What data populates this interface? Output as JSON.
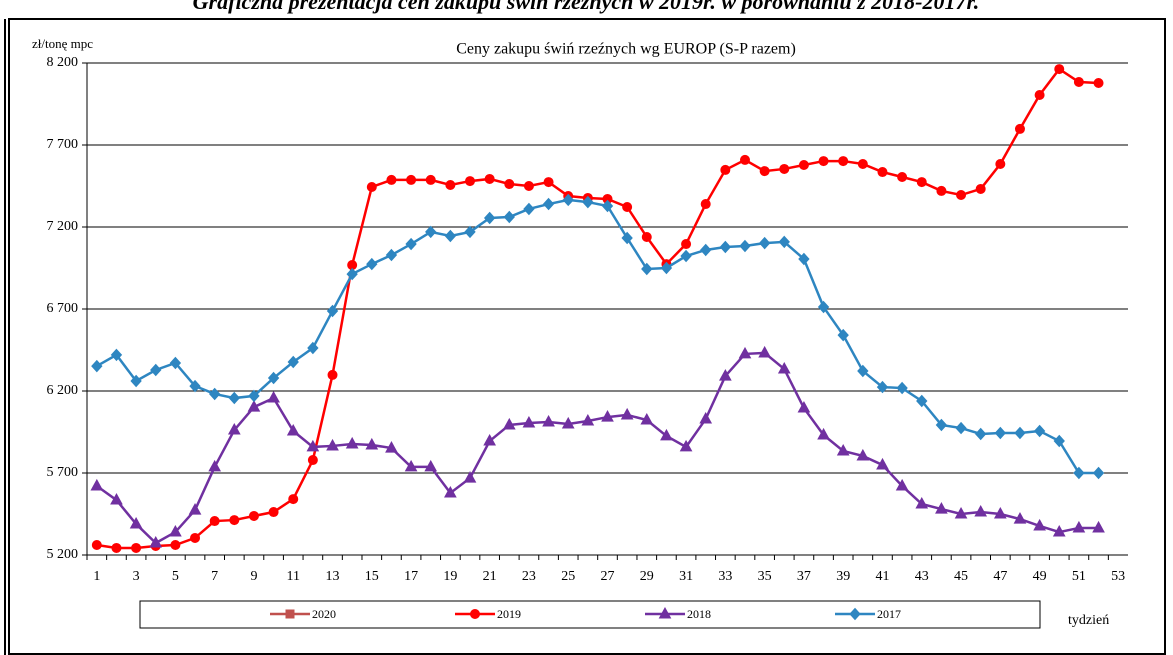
{
  "page_title": "Graficzna prezentacja cen zakupu świń rzeźnych w 2019r. w porównaniu z 2018-2017r.",
  "chart_data": {
    "type": "line",
    "title": "Ceny zakupu świń rzeźnych wg EUROP (S-P razem)",
    "ylabel": "zł/tonę  mpc",
    "xlabel": "tydzień",
    "categories": [
      1,
      null,
      3,
      null,
      5,
      null,
      7,
      null,
      9,
      null,
      11,
      null,
      13,
      null,
      15,
      null,
      17,
      null,
      19,
      null,
      21,
      null,
      23,
      null,
      25,
      null,
      27,
      null,
      29,
      null,
      31,
      null,
      33,
      null,
      35,
      null,
      37,
      null,
      39,
      null,
      41,
      null,
      43,
      null,
      45,
      null,
      47,
      null,
      49,
      null,
      51,
      null,
      53
    ],
    "ylim": [
      5200,
      8200
    ],
    "yticks": [
      {
        "value": 5200,
        "label": "5 200"
      },
      {
        "value": 5700,
        "label": "5 700"
      },
      {
        "value": 6200,
        "label": "6 200"
      },
      {
        "value": 6700,
        "label": "6 700"
      },
      {
        "value": 7200,
        "label": "7 200"
      },
      {
        "value": 7700,
        "label": "7 700"
      },
      {
        "value": 8200,
        "label": "8 200"
      }
    ],
    "grid": true,
    "series": [
      {
        "name": "2020",
        "color": "#c0504d",
        "marker": "square",
        "values": [
          null,
          null,
          null,
          null,
          null,
          null,
          null,
          null,
          null,
          null,
          null,
          null,
          null,
          null,
          null,
          null,
          null,
          null,
          null,
          null,
          null,
          null,
          null,
          null,
          null,
          null,
          null,
          null,
          null,
          null,
          null,
          null,
          null,
          null,
          null,
          null,
          null,
          null,
          null,
          null,
          null,
          null,
          null,
          null,
          null,
          null,
          null,
          null,
          null,
          null,
          null,
          null,
          null
        ]
      },
      {
        "name": "2019",
        "color": "#ff0000",
        "marker": "circle",
        "values": [
          5261,
          5243,
          5243,
          5255,
          5261,
          5304,
          5407,
          5413,
          5438,
          5462,
          5541,
          5779,
          6298,
          6968,
          7444,
          7487,
          7487,
          7487,
          7456,
          7480,
          7493,
          7462,
          7450,
          7474,
          7389,
          7377,
          7371,
          7322,
          7139,
          6974,
          7096,
          7340,
          7548,
          7609,
          7541,
          7554,
          7578,
          7602,
          7602,
          7584,
          7535,
          7505,
          7474,
          7420,
          7395,
          7432,
          7584,
          7798,
          8005,
          8163,
          8084,
          8078,
          null
        ]
      },
      {
        "name": "2018",
        "color": "#7030a0",
        "marker": "triangle",
        "values": [
          5621,
          5535,
          5389,
          5273,
          5340,
          5474,
          5737,
          5962,
          6102,
          6157,
          5956,
          5859,
          5865,
          5877,
          5871,
          5852,
          5737,
          5737,
          5578,
          5669,
          5895,
          5993,
          6005,
          6011,
          5999,
          6017,
          6041,
          6054,
          6023,
          5926,
          5859,
          6029,
          6291,
          6426,
          6432,
          6334,
          6096,
          5932,
          5834,
          5804,
          5749,
          5621,
          5511,
          5480,
          5450,
          5462,
          5450,
          5419,
          5377,
          5340,
          5365,
          5365,
          null
        ]
      },
      {
        "name": "2017",
        "color": "#2e86c1",
        "marker": "diamond",
        "values": [
          6352,
          6420,
          6261,
          6328,
          6371,
          6230,
          6182,
          6157,
          6170,
          6279,
          6377,
          6462,
          6688,
          6913,
          6974,
          7029,
          7096,
          7170,
          7145,
          7170,
          7255,
          7261,
          7310,
          7340,
          7365,
          7352,
          7328,
          7133,
          6944,
          6950,
          7023,
          7060,
          7078,
          7084,
          7102,
          7109,
          7005,
          6712,
          6541,
          6322,
          6224,
          6218,
          6139,
          5993,
          5974,
          5938,
          5944,
          5944,
          5956,
          5895,
          5700,
          5700,
          null
        ]
      }
    ]
  }
}
